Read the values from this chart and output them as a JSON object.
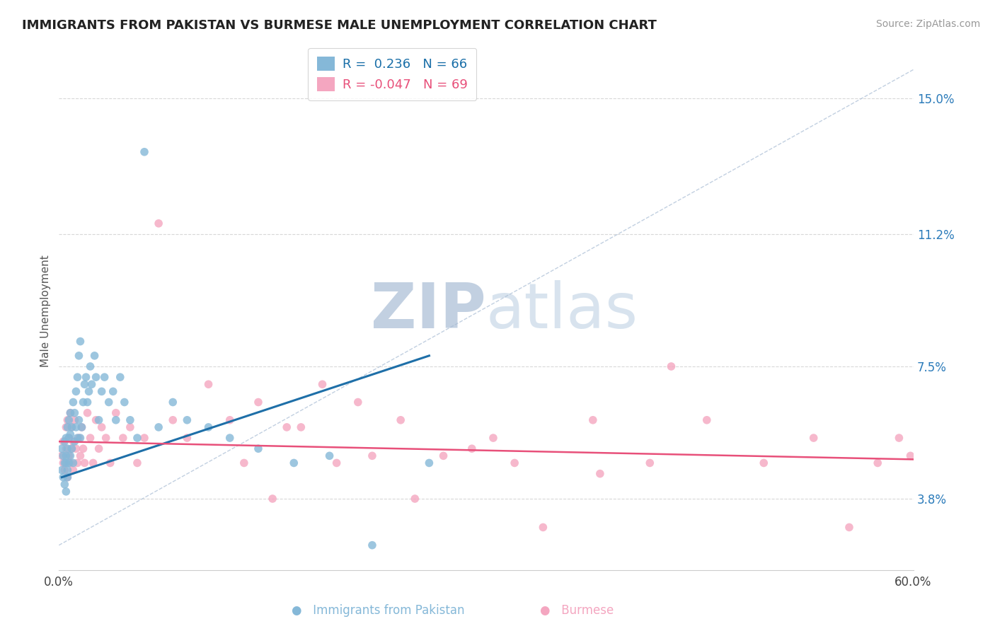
{
  "title": "IMMIGRANTS FROM PAKISTAN VS BURMESE MALE UNEMPLOYMENT CORRELATION CHART",
  "source": "Source: ZipAtlas.com",
  "ylabel": "Male Unemployment",
  "legend_labels": [
    "Immigrants from Pakistan",
    "Burmese"
  ],
  "r_values": [
    0.236,
    -0.047
  ],
  "n_values": [
    66,
    69
  ],
  "series_colors": [
    "#85b8d8",
    "#f4a6c0"
  ],
  "trend_colors": [
    "#1e6fa8",
    "#e8507a"
  ],
  "xmin": 0.0,
  "xmax": 0.6,
  "ymin": 0.018,
  "ymax": 0.163,
  "yticks": [
    0.038,
    0.075,
    0.112,
    0.15
  ],
  "ytick_labels": [
    "3.8%",
    "7.5%",
    "11.2%",
    "15.0%"
  ],
  "xtick_labels": [
    "0.0%",
    "60.0%"
  ],
  "background_color": "#ffffff",
  "watermark_zip_color": "#c8d4e8",
  "watermark_atlas_color": "#b8c8d8",
  "grid_color": "#d8d8d8",
  "title_color": "#222222",
  "ylabel_color": "#555555",
  "source_color": "#999999",
  "legend_text_colors": [
    "#1a6fa8",
    "#e8507a"
  ],
  "pakistan_x": [
    0.002,
    0.002,
    0.003,
    0.003,
    0.004,
    0.004,
    0.004,
    0.005,
    0.005,
    0.005,
    0.005,
    0.006,
    0.006,
    0.006,
    0.006,
    0.007,
    0.007,
    0.007,
    0.008,
    0.008,
    0.008,
    0.009,
    0.009,
    0.01,
    0.01,
    0.011,
    0.011,
    0.012,
    0.012,
    0.013,
    0.013,
    0.014,
    0.014,
    0.015,
    0.015,
    0.016,
    0.017,
    0.018,
    0.019,
    0.02,
    0.021,
    0.022,
    0.023,
    0.025,
    0.026,
    0.028,
    0.03,
    0.032,
    0.035,
    0.038,
    0.04,
    0.043,
    0.046,
    0.05,
    0.055,
    0.06,
    0.07,
    0.08,
    0.09,
    0.105,
    0.12,
    0.14,
    0.165,
    0.19,
    0.22,
    0.26
  ],
  "pakistan_y": [
    0.046,
    0.052,
    0.044,
    0.05,
    0.048,
    0.054,
    0.042,
    0.04,
    0.05,
    0.048,
    0.055,
    0.046,
    0.052,
    0.058,
    0.044,
    0.048,
    0.055,
    0.06,
    0.05,
    0.056,
    0.062,
    0.052,
    0.058,
    0.048,
    0.065,
    0.054,
    0.062,
    0.058,
    0.068,
    0.055,
    0.072,
    0.06,
    0.078,
    0.055,
    0.082,
    0.058,
    0.065,
    0.07,
    0.072,
    0.065,
    0.068,
    0.075,
    0.07,
    0.078,
    0.072,
    0.06,
    0.068,
    0.072,
    0.065,
    0.068,
    0.06,
    0.072,
    0.065,
    0.06,
    0.055,
    0.135,
    0.058,
    0.065,
    0.06,
    0.058,
    0.055,
    0.052,
    0.048,
    0.05,
    0.025,
    0.048
  ],
  "burmese_x": [
    0.002,
    0.003,
    0.003,
    0.004,
    0.005,
    0.005,
    0.006,
    0.006,
    0.007,
    0.007,
    0.008,
    0.008,
    0.009,
    0.009,
    0.01,
    0.01,
    0.011,
    0.012,
    0.013,
    0.014,
    0.015,
    0.016,
    0.017,
    0.018,
    0.02,
    0.022,
    0.024,
    0.026,
    0.028,
    0.03,
    0.033,
    0.036,
    0.04,
    0.045,
    0.05,
    0.055,
    0.06,
    0.07,
    0.08,
    0.09,
    0.105,
    0.12,
    0.14,
    0.16,
    0.185,
    0.21,
    0.24,
    0.27,
    0.305,
    0.34,
    0.375,
    0.415,
    0.455,
    0.495,
    0.53,
    0.555,
    0.575,
    0.59,
    0.598,
    0.43,
    0.38,
    0.32,
    0.29,
    0.25,
    0.22,
    0.195,
    0.17,
    0.15,
    0.13
  ],
  "burmese_y": [
    0.05,
    0.048,
    0.054,
    0.046,
    0.052,
    0.058,
    0.044,
    0.06,
    0.05,
    0.055,
    0.048,
    0.062,
    0.052,
    0.058,
    0.046,
    0.054,
    0.06,
    0.052,
    0.048,
    0.055,
    0.05,
    0.058,
    0.052,
    0.048,
    0.062,
    0.055,
    0.048,
    0.06,
    0.052,
    0.058,
    0.055,
    0.048,
    0.062,
    0.055,
    0.058,
    0.048,
    0.055,
    0.115,
    0.06,
    0.055,
    0.07,
    0.06,
    0.065,
    0.058,
    0.07,
    0.065,
    0.06,
    0.05,
    0.055,
    0.03,
    0.06,
    0.048,
    0.06,
    0.048,
    0.055,
    0.03,
    0.048,
    0.055,
    0.05,
    0.075,
    0.045,
    0.048,
    0.052,
    0.038,
    0.05,
    0.048,
    0.058,
    0.038,
    0.048
  ]
}
